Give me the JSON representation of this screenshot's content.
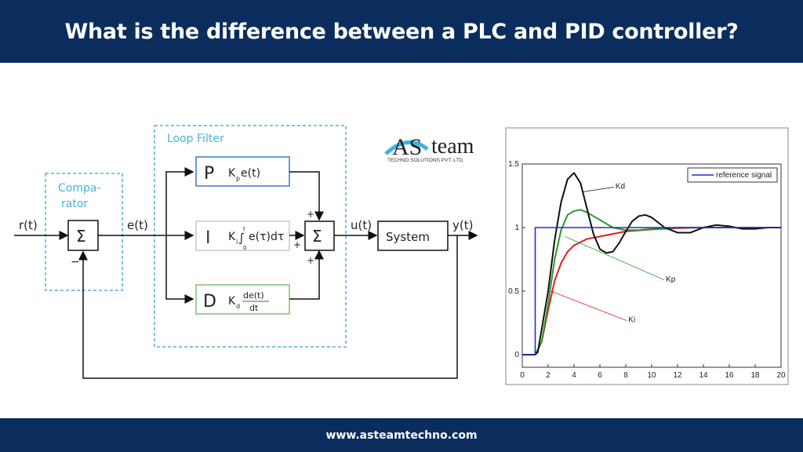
{
  "header": {
    "title": "What is the difference between a PLC and PID controller?"
  },
  "footer": {
    "url": "www.asteamtechno.com"
  },
  "logo": {
    "brand": "AS team",
    "tagline": "TECHNO SOLUTIONS PVT. LTD.",
    "accent": "#3bb5e0"
  },
  "diagram": {
    "comparator_label": "Compa-\nrator",
    "comparator_line1": "Compa-",
    "comparator_line2": "rator",
    "loop_filter_label": "Loop Filter",
    "input_signal": "r(t)",
    "error_signal": "e(t)",
    "control_signal": "u(t)",
    "output_signal": "y(t)",
    "sum_symbol": "Σ",
    "minus_sign": "−",
    "plus_sign": "+",
    "system_label": "System",
    "p_block": {
      "letter": "P",
      "k": "K",
      "sub": "p",
      "expr": "e(t)",
      "color": "#3a7bbf"
    },
    "i_block": {
      "letter": "I",
      "k": "K",
      "sub": "i",
      "upper": "t",
      "lower": "0",
      "expr": "e(τ)dτ",
      "integral": "∫",
      "color": "#c8c8c8"
    },
    "d_block": {
      "letter": "D",
      "k": "K",
      "sub": "d",
      "num": "de(t)",
      "den": "dt",
      "color": "#7cc46a"
    },
    "dashed_color": "#4ab3d6"
  },
  "chart_data": {
    "type": "line",
    "xlim": [
      0,
      20
    ],
    "ylim": [
      -0.1,
      1.5
    ],
    "xticks": [
      "0",
      "2",
      "4",
      "6",
      "8",
      "10",
      "12",
      "14",
      "16",
      "18",
      "20"
    ],
    "yticks": [
      "0",
      "0.5",
      "1",
      "1.5"
    ],
    "legend": {
      "entries": [
        "reference signal"
      ],
      "placement": "top-right"
    },
    "grid": false,
    "series": [
      {
        "name": "reference signal",
        "color": "#1f2fd0",
        "points": [
          [
            0,
            0
          ],
          [
            1,
            0
          ],
          [
            1,
            1
          ],
          [
            20,
            1
          ]
        ]
      },
      {
        "name": "Kd",
        "color": "#111111",
        "points": [
          [
            0,
            0
          ],
          [
            1,
            0
          ],
          [
            1.2,
            0.02
          ],
          [
            2,
            0.5
          ],
          [
            2.5,
            0.9
          ],
          [
            3,
            1.2
          ],
          [
            3.5,
            1.38
          ],
          [
            4,
            1.43
          ],
          [
            4.5,
            1.35
          ],
          [
            5,
            1.15
          ],
          [
            5.5,
            0.95
          ],
          [
            6,
            0.83
          ],
          [
            6.5,
            0.8
          ],
          [
            7,
            0.81
          ],
          [
            7.5,
            0.88
          ],
          [
            8,
            0.97
          ],
          [
            8.5,
            1.05
          ],
          [
            9,
            1.09
          ],
          [
            9.5,
            1.1
          ],
          [
            10,
            1.08
          ],
          [
            10.5,
            1.04
          ],
          [
            11,
            1.0
          ],
          [
            11.5,
            0.98
          ],
          [
            12,
            0.96
          ],
          [
            13,
            0.96
          ],
          [
            13.5,
            0.98
          ],
          [
            14,
            1.0
          ],
          [
            15,
            1.02
          ],
          [
            16,
            1.01
          ],
          [
            17,
            0.99
          ],
          [
            18,
            0.99
          ],
          [
            19,
            1.0
          ],
          [
            20,
            1.0
          ]
        ]
      },
      {
        "name": "Kp",
        "color": "#2a9a2a",
        "points": [
          [
            0,
            0
          ],
          [
            1,
            0
          ],
          [
            1.5,
            0.1
          ],
          [
            2,
            0.4
          ],
          [
            2.5,
            0.75
          ],
          [
            3,
            0.98
          ],
          [
            3.5,
            1.1
          ],
          [
            4,
            1.13
          ],
          [
            4.5,
            1.14
          ],
          [
            5,
            1.12
          ],
          [
            6,
            1.06
          ],
          [
            7,
            1.0
          ],
          [
            8,
            0.98
          ],
          [
            9,
            0.98
          ],
          [
            10,
            0.99
          ],
          [
            12,
            1.0
          ],
          [
            20,
            1.0
          ]
        ]
      },
      {
        "name": "Ki",
        "color": "#e02020",
        "points": [
          [
            0,
            0
          ],
          [
            1,
            0
          ],
          [
            1.5,
            0.1
          ],
          [
            2,
            0.35
          ],
          [
            2.5,
            0.58
          ],
          [
            3,
            0.72
          ],
          [
            3.5,
            0.81
          ],
          [
            4,
            0.86
          ],
          [
            5,
            0.91
          ],
          [
            6,
            0.93
          ],
          [
            7,
            0.95
          ],
          [
            8,
            0.97
          ],
          [
            10,
            0.985
          ],
          [
            12,
            0.995
          ],
          [
            14,
            1.0
          ],
          [
            20,
            1.0
          ]
        ]
      }
    ],
    "annotations": [
      {
        "text": "Kd",
        "at": [
          7.2,
          1.33
        ],
        "points_to": [
          4.6,
          1.28
        ]
      },
      {
        "text": "Kp",
        "at": [
          11.1,
          0.6
        ],
        "points_to": [
          3.3,
          0.93
        ]
      },
      {
        "text": "Ki",
        "at": [
          8.2,
          0.28
        ],
        "points_to": [
          2.2,
          0.5
        ]
      }
    ]
  }
}
